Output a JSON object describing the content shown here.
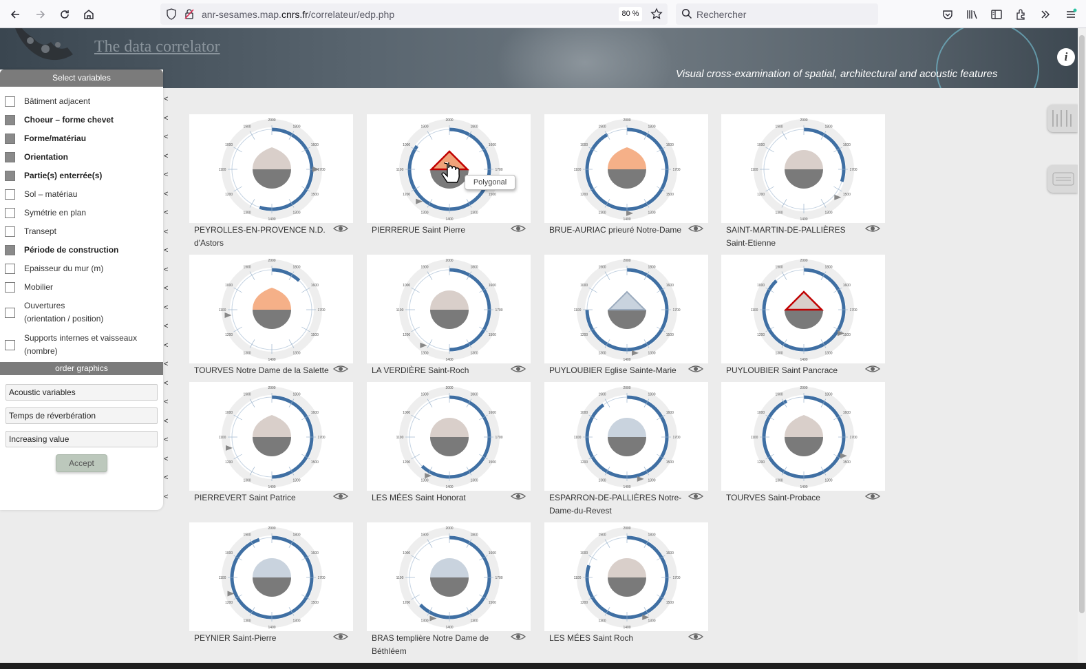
{
  "browser": {
    "url_prefix": "anr-sesames.map.",
    "url_domain": "cnrs.fr",
    "url_path": "/correlateur/edp.php",
    "zoom": "80 %",
    "search_placeholder": "Rechercher"
  },
  "header": {
    "title": "The data correlator",
    "subtitle": "Visual cross-examination of spatial, architectural and acoustic features",
    "info_icon": "i"
  },
  "panel": {
    "title": "Select variables",
    "variables": [
      {
        "label": "Bâtiment adjacent",
        "checked": false
      },
      {
        "label": "Choeur – forme chevet",
        "checked": true
      },
      {
        "label": "Forme/matériau",
        "checked": true
      },
      {
        "label": "Orientation",
        "checked": true
      },
      {
        "label": "Partie(s) enterrée(s)",
        "checked": true
      },
      {
        "label": "Sol – matériau",
        "checked": false
      },
      {
        "label": "Symétrie en plan",
        "checked": false
      },
      {
        "label": "Transept",
        "checked": false
      },
      {
        "label": "Période de construction",
        "checked": true
      },
      {
        "label": "Epaisseur du mur (m)",
        "checked": false
      },
      {
        "label": "Mobilier",
        "checked": false
      },
      {
        "label": "Ouvertures (orientation / position)",
        "checked": false
      },
      {
        "label": "Supports internes et vaisseaux (nombre)",
        "checked": false
      }
    ],
    "order_title": "order graphics",
    "order_selects": [
      "Acoustic variables",
      "Temps de réverbération",
      "Increasing value"
    ],
    "accept_label": "Accept"
  },
  "tooltip": "Polygonal",
  "churches": [
    {
      "name": "PEYROLLES-EN-PROVENCE N.D. d'Astors",
      "top": "#d9cfca",
      "shape": "drop",
      "ring": 0.55
    },
    {
      "name": "PIERRERUE Saint Pierre",
      "top": "#f0a37a",
      "shape": "poly-red",
      "ring": 0.85
    },
    {
      "name": "BRUE-AURIAC prieuré Notre-Dame",
      "top": "#f5b088",
      "shape": "drop",
      "ring": 0.92
    },
    {
      "name": "SAINT-MARTIN-DE-PALLIÈRES Saint-Etienne",
      "top": "#d9cfca",
      "shape": "dome",
      "ring": 0.3
    },
    {
      "name": "TOURVES Notre Dame de la Salette",
      "top": "#f5b088",
      "shape": "drop",
      "ring": 0.12
    },
    {
      "name": "LA VERDIÈRE Saint-Roch",
      "top": "#d9cfca",
      "shape": "dome",
      "ring": 0.5
    },
    {
      "name": "PUYLOUBIER Eglise Sainte-Marie",
      "top": "#c9d3de",
      "shape": "poly",
      "ring": 0.75
    },
    {
      "name": "PUYLOUBIER Saint Pancrace",
      "top": "#d9cfca",
      "shape": "poly-red",
      "ring": 0.88
    },
    {
      "name": "PIERREVERT Saint Patrice",
      "top": "#d9cfca",
      "shape": "drop",
      "ring": 0.5
    },
    {
      "name": "LES MÉES Saint Honorat",
      "top": "#d9cfca",
      "shape": "dome",
      "ring": 0.62
    },
    {
      "name": "ESPARRON-DE-PALLIÈRES Notre-Dame-du-Revest",
      "top": "#c9d3de",
      "shape": "dome",
      "ring": 0.9
    },
    {
      "name": "TOURVES Saint-Probace",
      "top": "#d9cfca",
      "shape": "drop",
      "ring": 0.93
    },
    {
      "name": "PEYNIER Saint-Pierre",
      "top": "#c9d3de",
      "shape": "dome",
      "ring": 0.95
    },
    {
      "name": "BRAS templière Notre Dame de Béthléem",
      "top": "#c9d3de",
      "shape": "dome",
      "ring": 0.63
    },
    {
      "name": "LES MÉES Saint Roch",
      "top": "#d9cfca",
      "shape": "dome",
      "ring": 0.8
    }
  ],
  "colors": {
    "ring": "#3f6fa3",
    "ring_bg": "#eeeeee",
    "bottom_half": "#7a7a7a",
    "red_outline": "#c00000"
  }
}
